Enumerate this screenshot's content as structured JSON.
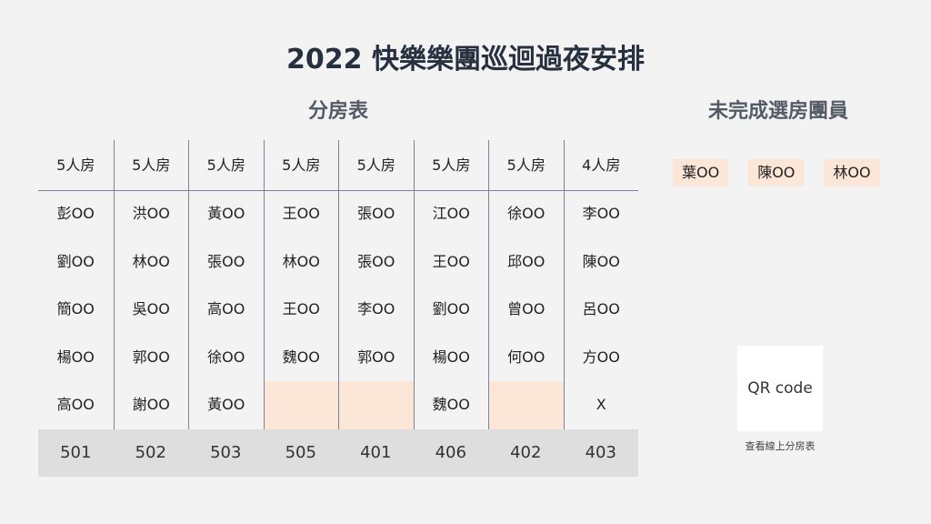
{
  "title": "2022 快樂樂團巡迴過夜安排",
  "table_subtitle": "分房表",
  "pending_subtitle": "未完成選房團員",
  "columns": [
    {
      "header": "5人房",
      "members": [
        "彭OO",
        "劉OO",
        "簡OO",
        "楊OO",
        "高OO"
      ],
      "room": "501"
    },
    {
      "header": "5人房",
      "members": [
        "洪OO",
        "林OO",
        "吳OO",
        "郭OO",
        "謝OO"
      ],
      "room": "502"
    },
    {
      "header": "5人房",
      "members": [
        "黃OO",
        "張OO",
        "高OO",
        "徐OO",
        "黃OO"
      ],
      "room": "503"
    },
    {
      "header": "5人房",
      "members": [
        "王OO",
        "林OO",
        "王OO",
        "魏OO",
        ""
      ],
      "room": "505"
    },
    {
      "header": "5人房",
      "members": [
        "張OO",
        "張OO",
        "李OO",
        "郭OO",
        ""
      ],
      "room": "401"
    },
    {
      "header": "5人房",
      "members": [
        "江OO",
        "王OO",
        "劉OO",
        "楊OO",
        "魏OO"
      ],
      "room": "406"
    },
    {
      "header": "5人房",
      "members": [
        "徐OO",
        "邱OO",
        "曾OO",
        "何OO",
        ""
      ],
      "room": "402"
    },
    {
      "header": "4人房",
      "members": [
        "李OO",
        "陳OO",
        "呂OO",
        "方OO",
        "X"
      ],
      "room": "403"
    }
  ],
  "pending_members": [
    "葉OO",
    "陳OO",
    "林OO"
  ],
  "qr": {
    "label": "QR code",
    "caption": "查看線上分房表"
  },
  "colors": {
    "empty_slot": "#fce6d8",
    "room_bar": "#dedede",
    "grid": "#7b8494"
  }
}
